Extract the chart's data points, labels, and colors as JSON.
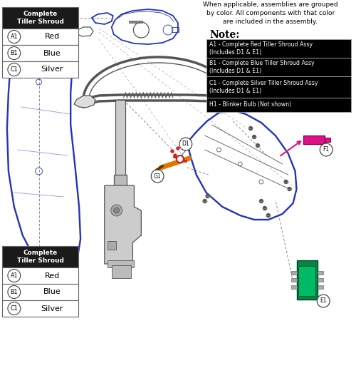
{
  "bg_color": "#ffffff",
  "header_intro": "When applicable, assemblies are grouped\nby color. All components with that color\nare included in the assembly.",
  "note_label": "Note:",
  "note_items": [
    "A1 - Complete Red Tiller Shroud Assy\n(Includes D1 & E1)",
    "B1 - Complete Blue Tiller Shroud Assy\n(Includes D1 & E1)",
    "C1 - Complete Silver Tiller Shroud Assy\n(Includes D1 & E1)",
    "H1 - Blinker Bulb (Not shown)"
  ],
  "top_table_header": "Complete\nTiller Shroud",
  "top_table_rows": [
    {
      "label": "A1",
      "text": "Red"
    },
    {
      "label": "B1",
      "text": "Blue"
    },
    {
      "label": "C1",
      "text": "Silver"
    }
  ],
  "bottom_table_header": "Complete\nTiller Shroud",
  "bottom_table_rows": [
    {
      "label": "A1",
      "text": "Red"
    },
    {
      "label": "B1",
      "text": "Blue"
    },
    {
      "label": "C1",
      "text": "Silver"
    }
  ],
  "table_header_bg": "#1a1a1a",
  "table_header_fg": "#ffffff",
  "note_item_bg": "#000000",
  "note_item_fg": "#ffffff",
  "diagram_color": "#2233bb",
  "gray_color": "#555555",
  "part_d1_color": "#cc2222",
  "part_g1_color": "#dd7700",
  "part_f1_color": "#dd1188",
  "part_e1_color": "#008844"
}
